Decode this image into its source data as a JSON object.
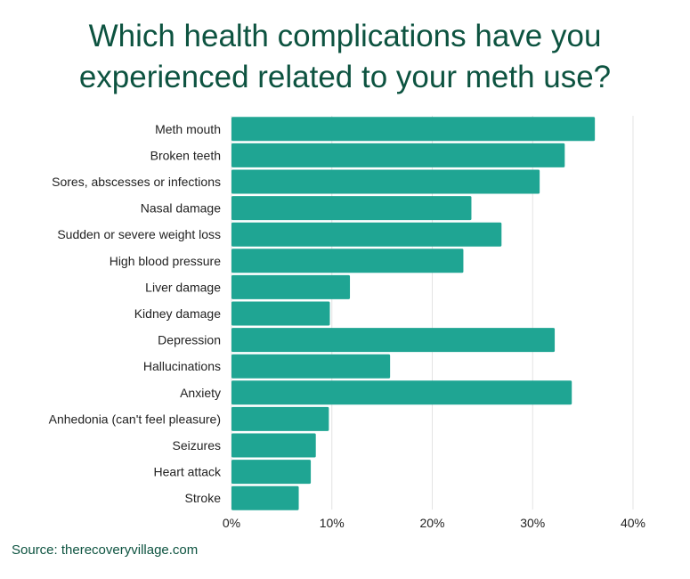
{
  "chart_data": {
    "type": "bar",
    "orientation": "horizontal",
    "title": "Which health complications have you experienced related to your meth use?",
    "categories": [
      "Meth mouth",
      "Broken teeth",
      "Sores, abscesses or infections",
      "Nasal damage",
      "Sudden or severe weight loss",
      "High blood pressure",
      "Liver damage",
      "Kidney damage",
      "Depression",
      "Hallucinations",
      "Anxiety",
      "Anhedonia (can't feel pleasure)",
      "Seizures",
      "Heart attack",
      "Stroke"
    ],
    "values": [
      36.2,
      33.2,
      30.7,
      23.9,
      26.9,
      23.1,
      11.8,
      9.8,
      32.2,
      15.8,
      33.9,
      9.7,
      8.4,
      7.9,
      6.7
    ],
    "xlim": [
      0,
      40
    ],
    "xticks": [
      "0%",
      "10%",
      "20%",
      "30%",
      "40%"
    ],
    "xlabel": "",
    "ylabel": "",
    "grid": true,
    "bar_color": "#1fa593"
  },
  "source": "Source: therecoveryvillage.com",
  "colors": {
    "title": "#0d5340",
    "grid": "#e3e3e3"
  }
}
